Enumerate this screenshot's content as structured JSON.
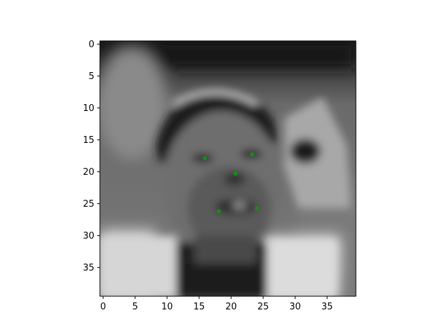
{
  "chart_data": {
    "type": "scatter",
    "title": "",
    "xlabel": "",
    "ylabel": "",
    "xlim": [
      -0.5,
      39.5
    ],
    "ylim": [
      39.5,
      -0.5
    ],
    "y_inverted": true,
    "grid": false,
    "legend": "none",
    "background": "grayscale face photo",
    "x_ticks": [
      0,
      5,
      10,
      15,
      20,
      25,
      30,
      35
    ],
    "y_ticks": [
      0,
      5,
      10,
      15,
      20,
      25,
      30,
      35
    ],
    "x_tick_labels": [
      "0",
      "5",
      "10",
      "15",
      "20",
      "25",
      "30",
      "35"
    ],
    "y_tick_labels": [
      "0",
      "5",
      "10",
      "15",
      "20",
      "25",
      "30",
      "35"
    ],
    "series": [
      {
        "marker_color": "#1a8a1a",
        "points": [
          {
            "x": 15.9,
            "y": 17.9
          },
          {
            "x": 23.3,
            "y": 17.3
          },
          {
            "x": 20.7,
            "y": 20.3
          },
          {
            "x": 18.1,
            "y": 26.2
          },
          {
            "x": 24.0,
            "y": 25.7
          }
        ]
      }
    ]
  }
}
